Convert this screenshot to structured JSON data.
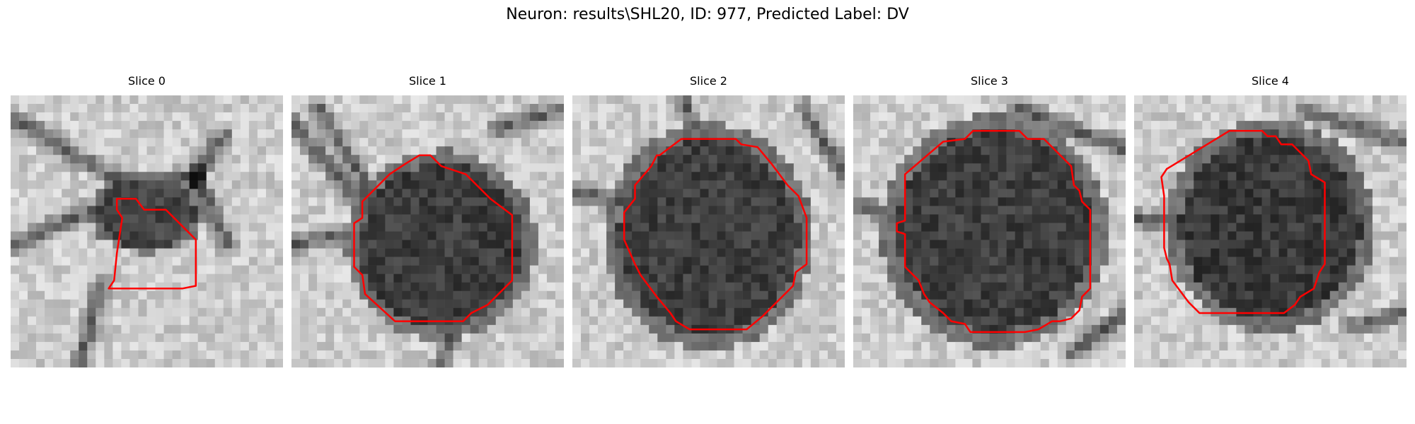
{
  "figure": {
    "title": "Neuron: results\\SHL20, ID: 977, Predicted Label: DV"
  },
  "contour_color": "#ff0000",
  "panels": [
    {
      "title": "Slice 0"
    },
    {
      "title": "Slice 1"
    },
    {
      "title": "Slice 2"
    },
    {
      "title": "Slice 3"
    },
    {
      "title": "Slice 4"
    }
  ]
}
